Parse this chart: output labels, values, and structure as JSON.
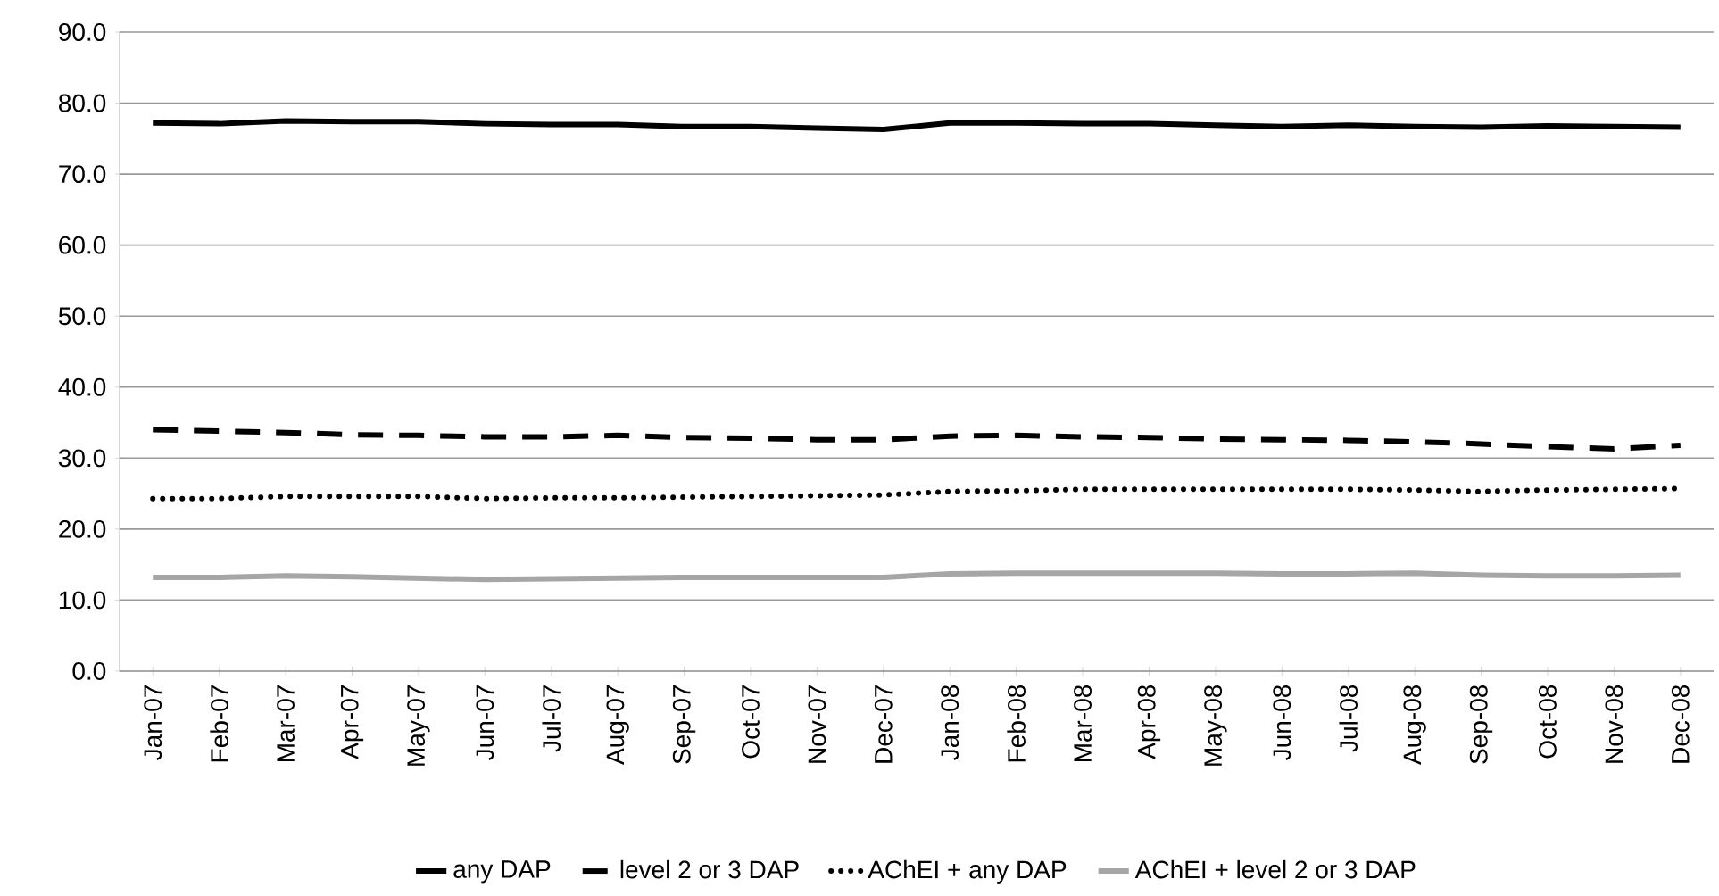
{
  "chart_data": {
    "type": "line",
    "categories": [
      "Jan-07",
      "Feb-07",
      "Mar-07",
      "Apr-07",
      "May-07",
      "Jun-07",
      "Jul-07",
      "Aug-07",
      "Sep-07",
      "Oct-07",
      "Nov-07",
      "Dec-07",
      "Jan-08",
      "Feb-08",
      "Mar-08",
      "Apr-08",
      "May-08",
      "Jun-08",
      "Jul-08",
      "Aug-08",
      "Sep-08",
      "Oct-08",
      "Nov-08",
      "Dec-08"
    ],
    "series": [
      {
        "name": "any DAP",
        "color": "#000000",
        "line_style": "solid",
        "values": [
          77.2,
          77.1,
          77.5,
          77.4,
          77.4,
          77.1,
          77.0,
          77.0,
          76.7,
          76.7,
          76.5,
          76.3,
          77.2,
          77.2,
          77.1,
          77.1,
          76.9,
          76.7,
          76.9,
          76.7,
          76.6,
          76.8,
          76.7,
          76.6
        ]
      },
      {
        "name": "level 2 or 3 DAP",
        "color": "#000000",
        "line_style": "dashed",
        "values": [
          34.0,
          33.8,
          33.6,
          33.3,
          33.2,
          33.0,
          33.0,
          33.2,
          32.9,
          32.8,
          32.6,
          32.6,
          33.1,
          33.2,
          33.0,
          32.9,
          32.7,
          32.6,
          32.5,
          32.3,
          32.0,
          31.6,
          31.3,
          31.8
        ]
      },
      {
        "name": "AChEI + any DAP",
        "color": "#000000",
        "line_style": "dotted",
        "values": [
          24.3,
          24.3,
          24.6,
          24.6,
          24.6,
          24.3,
          24.4,
          24.4,
          24.5,
          24.6,
          24.7,
          24.8,
          25.3,
          25.4,
          25.6,
          25.6,
          25.6,
          25.6,
          25.6,
          25.5,
          25.3,
          25.5,
          25.6,
          25.7
        ]
      },
      {
        "name": "AChEI + level 2 or 3 DAP",
        "color": "#a6a6a6",
        "line_style": "solid",
        "values": [
          13.2,
          13.2,
          13.4,
          13.3,
          13.1,
          12.9,
          13.0,
          13.1,
          13.2,
          13.2,
          13.2,
          13.2,
          13.7,
          13.8,
          13.8,
          13.8,
          13.8,
          13.7,
          13.7,
          13.8,
          13.5,
          13.4,
          13.4,
          13.5
        ]
      }
    ],
    "ylim": [
      0,
      90
    ],
    "yticks": [
      {
        "value": 0,
        "label": "0.0"
      },
      {
        "value": 10,
        "label": "10.0"
      },
      {
        "value": 20,
        "label": "20.0"
      },
      {
        "value": 30,
        "label": "30.0"
      },
      {
        "value": 40,
        "label": "40.0"
      },
      {
        "value": 50,
        "label": "50.0"
      },
      {
        "value": 60,
        "label": "60.0"
      },
      {
        "value": 70,
        "label": "70.0"
      },
      {
        "value": 80,
        "label": "80.0"
      },
      {
        "value": 90,
        "label": "90.0"
      }
    ],
    "grid": "y",
    "legend": "bottom",
    "marker": "none"
  }
}
